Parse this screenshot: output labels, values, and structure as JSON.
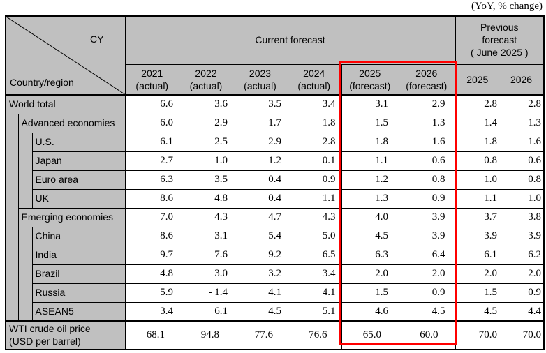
{
  "title_note": "(YoY, % change)",
  "colors": {
    "header_bg": "#c0c0c0",
    "highlight_border": "#ff0000",
    "grid": "#000000"
  },
  "header": {
    "corner_top_right": "CY",
    "corner_bottom_left": "Country/region",
    "current_group": "Current forecast",
    "previous_group": "Previous\nforecast\n( June 2025 )"
  },
  "chart_data": {
    "type": "table",
    "title": "(YoY, % change)",
    "column_groups": [
      {
        "label": "Current forecast",
        "span": 6
      },
      {
        "label": "Previous forecast ( June 2025 )",
        "span": 2
      }
    ],
    "columns": [
      "2021\n(actual)",
      "2022\n(actual)",
      "2023\n(actual)",
      "2024\n(actual)",
      "2025\n(forecast)",
      "2026\n(forecast)",
      "2025",
      "2026"
    ],
    "highlighted_columns": [
      "2025 (forecast)",
      "2026 (forecast)"
    ],
    "rows": [
      {
        "label": "World total",
        "indent": 0,
        "values": [
          "6.6",
          "3.6",
          "3.5",
          "3.4",
          "3.1",
          "2.9",
          "2.8",
          "2.8"
        ]
      },
      {
        "label": "Advanced economies",
        "indent": 1,
        "values": [
          "6.0",
          "2.9",
          "1.7",
          "1.8",
          "1.5",
          "1.3",
          "1.4",
          "1.3"
        ]
      },
      {
        "label": "U.S.",
        "indent": 2,
        "values": [
          "6.1",
          "2.5",
          "2.9",
          "2.8",
          "1.8",
          "1.6",
          "1.8",
          "1.6"
        ]
      },
      {
        "label": "Japan",
        "indent": 2,
        "values": [
          "2.7",
          "1.0",
          "1.2",
          "0.1",
          "1.1",
          "0.6",
          "0.8",
          "0.6"
        ]
      },
      {
        "label": "Euro area",
        "indent": 2,
        "values": [
          "6.3",
          "3.5",
          "0.4",
          "0.9",
          "1.2",
          "0.8",
          "1.0",
          "0.8"
        ]
      },
      {
        "label": "UK",
        "indent": 2,
        "values": [
          "8.6",
          "4.8",
          "0.4",
          "1.1",
          "1.3",
          "0.9",
          "1.1",
          "1.0"
        ]
      },
      {
        "label": "Emerging economies",
        "indent": 1,
        "values": [
          "7.0",
          "4.3",
          "4.7",
          "4.3",
          "4.0",
          "3.9",
          "3.7",
          "3.8"
        ]
      },
      {
        "label": "China",
        "indent": 2,
        "values": [
          "8.6",
          "3.1",
          "5.4",
          "5.0",
          "4.5",
          "3.9",
          "3.9",
          "3.9"
        ]
      },
      {
        "label": "India",
        "indent": 2,
        "values": [
          "9.7",
          "7.6",
          "9.2",
          "6.5",
          "6.3",
          "6.4",
          "6.1",
          "6.2"
        ]
      },
      {
        "label": "Brazil",
        "indent": 2,
        "values": [
          "4.8",
          "3.0",
          "3.2",
          "3.4",
          "2.0",
          "2.0",
          "2.0",
          "2.0"
        ]
      },
      {
        "label": "Russia",
        "indent": 2,
        "values": [
          "5.9",
          "- 1.4",
          "4.1",
          "4.1",
          "1.5",
          "0.9",
          "1.5",
          "0.9"
        ]
      },
      {
        "label": "ASEAN5",
        "indent": 2,
        "values": [
          "3.4",
          "6.1",
          "4.5",
          "5.1",
          "4.6",
          "4.5",
          "4.5",
          "4.4"
        ]
      }
    ],
    "footer": {
      "label": "WTI crude oil price\n(USD per barrel)",
      "values": [
        "68.1",
        "94.8",
        "77.6",
        "76.6",
        "65.0",
        "60.0",
        "70.0",
        "70.0"
      ]
    }
  }
}
